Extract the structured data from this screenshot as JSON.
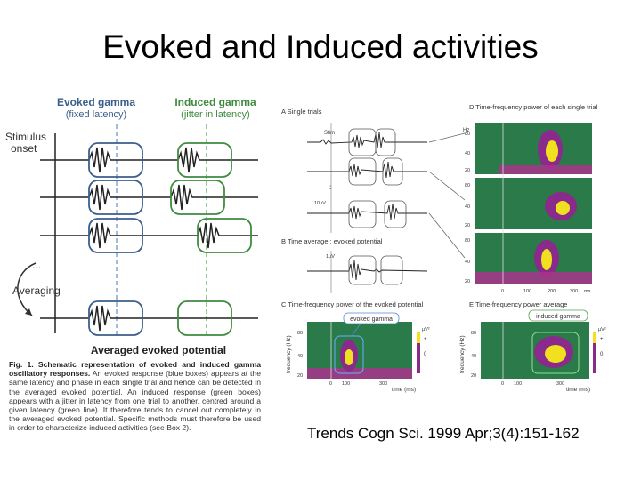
{
  "slide": {
    "title": "Evoked and Induced activities",
    "citation": "Trends Cogn Sci. 1999 Apr;3(4):151-162"
  },
  "left_figure": {
    "evoked_header": "Evoked gamma",
    "evoked_sub": "(fixed latency)",
    "induced_header": "Induced gamma",
    "induced_sub": "(jitter in latency)",
    "stimulus_label_1": "Stimulus",
    "stimulus_label_2": "onset",
    "averaging_label": "Averaging",
    "averaged_label": "Averaged evoked potential",
    "caption_bold": "Fig. 1. Schematic representation of evoked and induced gamma oscillatory responses.",
    "caption_text": " An evoked response (blue boxes) appears at the same latency and phase in each single trial and hence can be detected in the averaged evoked potential. An induced response (green boxes) appears with a jitter in latency from one trial to another, centred around a given latency (green line). It therefore tends to cancel out completely in the averaged evoked potential. Specific methods must therefore be used in order to characterize induced activities (see Box 2).",
    "colors": {
      "evoked": "#3a5f8a",
      "induced": "#3f8a3f",
      "evoked_line": "#6a8fb8",
      "induced_line": "#5aa05a"
    }
  },
  "right_figure": {
    "panel_a": "A Single trials",
    "panel_b": "B Time average : evoked potential",
    "panel_c": "C Time-frequency power of the evoked potential",
    "panel_d": "D Time-frequency power of each single trial",
    "panel_e": "E Time-frequency power average",
    "stim_label": "Stim",
    "scale_label": "10µV",
    "scale_label_b": "1µV",
    "evoked_box_label": "evoked gamma",
    "induced_box_label": "induced gamma",
    "hz_label": "Hz",
    "ms_label": "ms",
    "freq_axis_c": "frequency (Hz)",
    "freq_axis_e": "frequency (Hz)",
    "time_axis_c": "time (ms)",
    "time_axis_e": "time (ms)",
    "uv_label": "µV²",
    "d_yticks": [
      "80",
      "40",
      "20"
    ],
    "d_xticks": [
      "0",
      "100",
      "200",
      "300"
    ],
    "c_yticks": [
      "80",
      "40",
      "20"
    ],
    "c_xticks": [
      "0",
      "100",
      "300"
    ],
    "e_yticks": [
      "80",
      "40",
      "20"
    ],
    "e_xticks": [
      "0",
      "100",
      "300"
    ],
    "colorbar_ticks": [
      "+",
      "0",
      "-"
    ],
    "colors": {
      "heat_bg": "#2a7a4a",
      "heat_mid": "#8a2a8a",
      "heat_hot": "#f0e020"
    }
  }
}
